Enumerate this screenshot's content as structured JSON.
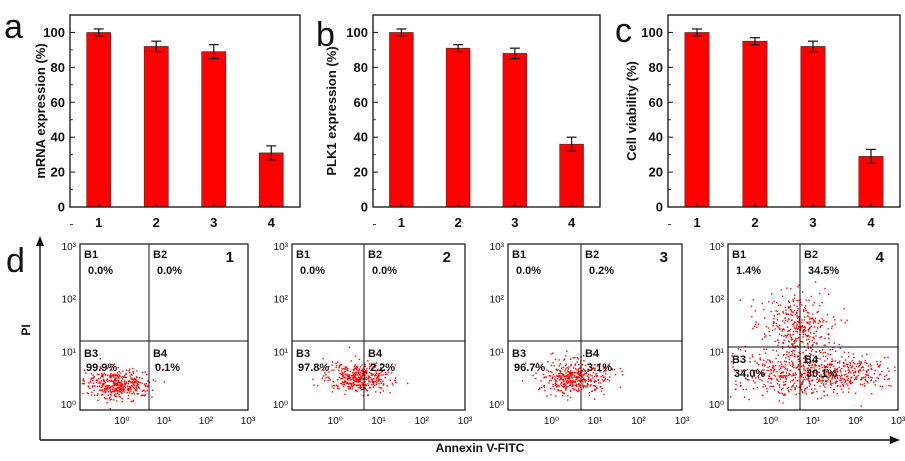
{
  "chart_data": [
    {
      "type": "bar",
      "panel": "a",
      "ylabel": "mRNA expression (%)",
      "categories": [
        "1",
        "2",
        "3",
        "4"
      ],
      "values": [
        100,
        92,
        89,
        31
      ],
      "errors": [
        2,
        3,
        4,
        4
      ],
      "ylim": [
        0,
        110
      ],
      "yticks": [
        0,
        20,
        40,
        60,
        80,
        100
      ],
      "color": "#ff0000"
    },
    {
      "type": "bar",
      "panel": "b",
      "ylabel": "PLK1 expression (%)",
      "categories": [
        "1",
        "2",
        "3",
        "4"
      ],
      "values": [
        100,
        91,
        88,
        36
      ],
      "errors": [
        2,
        2,
        3,
        4
      ],
      "ylim": [
        0,
        110
      ],
      "yticks": [
        0,
        20,
        40,
        60,
        80,
        100
      ],
      "color": "#ff0000"
    },
    {
      "type": "bar",
      "panel": "c",
      "ylabel": "Cell viability (%)",
      "categories": [
        "1",
        "2",
        "3",
        "4"
      ],
      "values": [
        100,
        95,
        92,
        29
      ],
      "errors": [
        2,
        2,
        3,
        4
      ],
      "ylim": [
        0,
        110
      ],
      "yticks": [
        0,
        20,
        40,
        60,
        80,
        100
      ],
      "color": "#ff0000"
    },
    {
      "type": "scatter",
      "panel": "d",
      "xlabel": "Annexin V-FITC",
      "ylabel": "PI",
      "x_scale": "log",
      "y_scale": "log",
      "xticks": [
        "10⁰",
        "10¹",
        "10²",
        "10³"
      ],
      "yticks": [
        "10³",
        "10²",
        "10¹",
        "10⁰"
      ],
      "point_color": "#ff0000",
      "plots": [
        {
          "sample": "1",
          "quadrants": [
            {
              "name": "B1",
              "value": "0.0%"
            },
            {
              "name": "B2",
              "value": "0.0%"
            },
            {
              "name": "B3",
              "value": "99.9%"
            },
            {
              "name": "B4",
              "value": "0.1%"
            }
          ]
        },
        {
          "sample": "2",
          "quadrants": [
            {
              "name": "B1",
              "value": "0.0%"
            },
            {
              "name": "B2",
              "value": "0.0%"
            },
            {
              "name": "B3",
              "value": "97.8%"
            },
            {
              "name": "B4",
              "value": "2.2%"
            }
          ]
        },
        {
          "sample": "3",
          "quadrants": [
            {
              "name": "B1",
              "value": "0.0%"
            },
            {
              "name": "B2",
              "value": "0.2%"
            },
            {
              "name": "B3",
              "value": "96.7%"
            },
            {
              "name": "B4",
              "value": "3.1%"
            }
          ]
        },
        {
          "sample": "4",
          "quadrants": [
            {
              "name": "B1",
              "value": "1.4%"
            },
            {
              "name": "B2",
              "value": "34.5%"
            },
            {
              "name": "B3",
              "value": "34.0%"
            },
            {
              "name": "B4",
              "value": "30.1%"
            }
          ]
        }
      ]
    }
  ],
  "panel_labels": {
    "a": "a",
    "b": "b",
    "c": "c",
    "d": "d"
  }
}
